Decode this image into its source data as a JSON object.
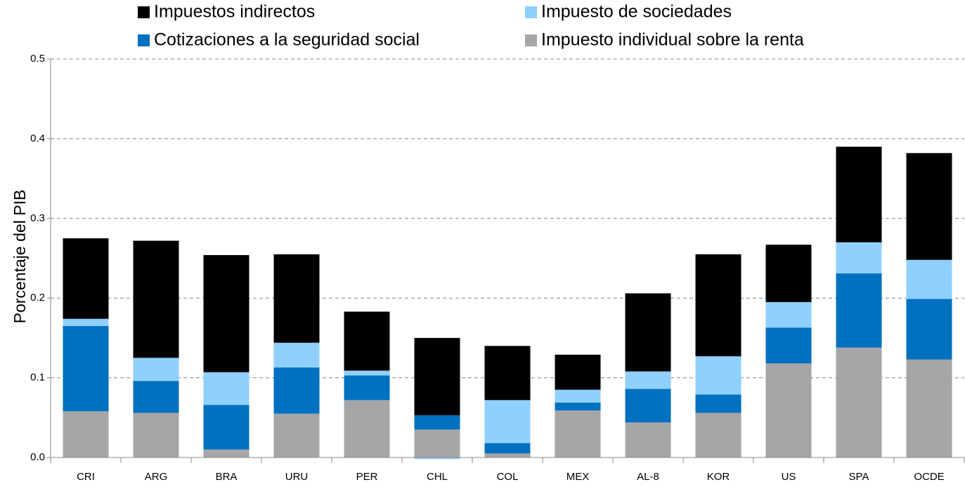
{
  "chart_data": {
    "type": "stacked_bar",
    "y_label": "Porcentaje del PIB",
    "categories": [
      "CRI",
      "ARG",
      "BRA",
      "URU",
      "PER",
      "CHL",
      "COL",
      "MEX",
      "AL-8",
      "KOR",
      "US",
      "SPA",
      "OCDE"
    ],
    "series": [
      {
        "name": "Impuesto individual sobre la renta",
        "color": "#a6a6a6",
        "values": [
          0.058,
          0.056,
          0.01,
          0.055,
          0.072,
          0.035,
          0.005,
          0.059,
          0.044,
          0.056,
          0.118,
          0.138,
          0.123
        ]
      },
      {
        "name": "Cotizaciones a la seguridad social",
        "color": "#0070c0",
        "values": [
          0.107,
          0.04,
          0.056,
          0.058,
          0.031,
          0.018,
          0.013,
          0.01,
          0.042,
          0.023,
          0.045,
          0.093,
          0.076
        ]
      },
      {
        "name": "Impuesto de sociedades",
        "color": "#8fd0ff",
        "values": [
          0.009,
          0.029,
          0.041,
          0.031,
          0.006,
          -0.002,
          0.054,
          0.016,
          0.022,
          0.048,
          0.032,
          0.039,
          0.049
        ]
      },
      {
        "name": "Impuestos indirectos",
        "color": "#000000",
        "values": [
          0.101,
          0.147,
          0.147,
          0.111,
          0.074,
          0.097,
          0.068,
          0.044,
          0.098,
          0.128,
          0.072,
          0.12,
          0.134
        ]
      }
    ],
    "ylim": [
      0,
      0.5
    ],
    "yticks": [
      {
        "value": 0,
        "label": "0.0"
      },
      0.1,
      0.2,
      0.3,
      0.4,
      0.5
    ],
    "grid": true
  }
}
